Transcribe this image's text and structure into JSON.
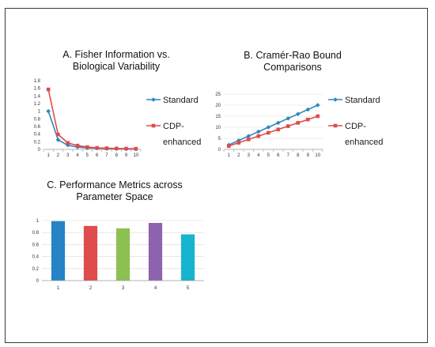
{
  "chart_data": [
    {
      "type": "line",
      "title": "A. Fisher Information vs. Biological Variability",
      "title_lines": [
        "A. Fisher Information vs.",
        "Biological Variability"
      ],
      "xlabel": "",
      "ylabel": "",
      "x": [
        1,
        2,
        3,
        4,
        5,
        6,
        7,
        8,
        9,
        10
      ],
      "ylim": [
        0,
        1.8
      ],
      "yticks": [
        "0",
        "0.2",
        "0.4",
        "0.6",
        "0.8",
        "1",
        "1.2",
        "1.4",
        "1.6",
        "1.8"
      ],
      "grid": false,
      "legend": "right",
      "series": [
        {
          "name": "Standard",
          "color": "#2E86C1",
          "marker": "diamond",
          "values": [
            1.0,
            0.25,
            0.11,
            0.06,
            0.04,
            0.03,
            0.02,
            0.015,
            0.012,
            0.01
          ]
        },
        {
          "name": "CDP-enhanced",
          "legend_lines": [
            "CDP-",
            "enhanced"
          ],
          "color": "#E04B4B",
          "marker": "square",
          "values": [
            1.57,
            0.39,
            0.17,
            0.1,
            0.06,
            0.04,
            0.03,
            0.025,
            0.02,
            0.016
          ]
        }
      ]
    },
    {
      "type": "line",
      "title": "B. Cramér-Rao Bound Comparisons",
      "title_lines": [
        "B. Cramér-Rao Bound",
        "Comparisons"
      ],
      "xlabel": "",
      "ylabel": "",
      "x": [
        1,
        2,
        3,
        4,
        5,
        6,
        7,
        8,
        9,
        10
      ],
      "ylim": [
        0,
        25
      ],
      "yticks": [
        "0",
        "5",
        "10",
        "15",
        "20",
        "25"
      ],
      "grid": true,
      "legend": "right",
      "series": [
        {
          "name": "Standard",
          "color": "#2E86C1",
          "marker": "diamond",
          "values": [
            2,
            4,
            6,
            8,
            10,
            12,
            14,
            16,
            18,
            20
          ]
        },
        {
          "name": "CDP-enhanced",
          "legend_lines": [
            "CDP-",
            "enhanced"
          ],
          "color": "#E04B4B",
          "marker": "square",
          "values": [
            1.5,
            3,
            4.5,
            6,
            7.5,
            9,
            10.5,
            12,
            13.5,
            15
          ]
        }
      ]
    },
    {
      "type": "bar",
      "title": "C. Performance Metrics across Parameter Space",
      "title_lines": [
        "C. Performance Metrics across",
        "Parameter Space"
      ],
      "xlabel": "",
      "ylabel": "",
      "categories": [
        "1",
        "2",
        "3",
        "4",
        "5"
      ],
      "values": [
        0.99,
        0.91,
        0.87,
        0.96,
        0.77
      ],
      "colors": [
        "#2683C6",
        "#E04B4B",
        "#8CC152",
        "#8E63AD",
        "#17B3CF"
      ],
      "ylim": [
        0,
        1
      ],
      "yticks": [
        "0",
        "0.2",
        "0.4",
        "0.6",
        "0.8",
        "1"
      ],
      "grid": true,
      "legend": "none"
    }
  ]
}
